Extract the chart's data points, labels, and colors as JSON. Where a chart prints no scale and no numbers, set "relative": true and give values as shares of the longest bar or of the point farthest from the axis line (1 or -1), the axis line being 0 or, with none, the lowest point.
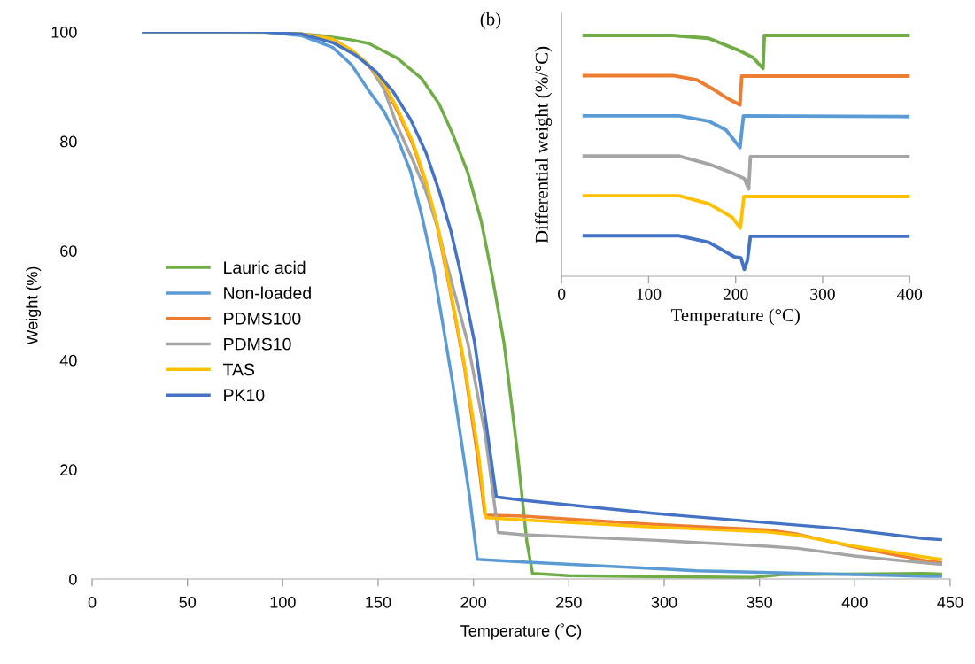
{
  "chart_data": [
    {
      "type": "line",
      "xlabel": "Temperature (˚C)",
      "ylabel": "Weight (%)",
      "xlim": [
        0,
        450
      ],
      "xticks": [
        0,
        50,
        100,
        150,
        200,
        250,
        300,
        350,
        400,
        450
      ],
      "ylim": [
        0,
        100
      ],
      "yticks": [
        0,
        20,
        40,
        60,
        80,
        100
      ],
      "grid": false,
      "legend": "left",
      "series": [
        {
          "name": "Lauric acid",
          "color": "#70ad47",
          "x": [
            27,
            100,
            120,
            135,
            145,
            160,
            173,
            182,
            189,
            197,
            204,
            210,
            216,
            223,
            228,
            231,
            250,
            300,
            347,
            362,
            436,
            445
          ],
          "values": [
            100,
            99.9,
            99.3,
            98.6,
            97.9,
            95.2,
            91.4,
            86.8,
            81.4,
            74.3,
            65.5,
            55,
            43.2,
            23.3,
            6.8,
            1,
            0.6,
            0.4,
            0.3,
            0.8,
            1.0,
            0.9
          ]
        },
        {
          "name": "Non-loaded",
          "color": "#5b9bd5",
          "x": [
            27,
            90,
            110,
            126,
            136,
            145,
            153,
            160,
            167,
            173,
            179,
            184,
            189,
            193,
            198,
            202,
            226,
            317,
            438,
            445
          ],
          "values": [
            100,
            100,
            99.3,
            97.2,
            94,
            89.3,
            85.5,
            80.7,
            74.5,
            66.3,
            56.8,
            46.4,
            36,
            26.7,
            15,
            3.6,
            3.1,
            1.5,
            0.5,
            0.5
          ]
        },
        {
          "name": "PDMS100",
          "color": "#ed7d31",
          "x": [
            110,
            126,
            136,
            145,
            153,
            160,
            168,
            175,
            181,
            186,
            195,
            202,
            206,
            226,
            294,
            354,
            370,
            400,
            438,
            445
          ],
          "values": [
            99.6,
            98.7,
            96.6,
            93.8,
            90.3,
            85.6,
            79.6,
            72.4,
            64.4,
            55.8,
            39.3,
            22.8,
            11.7,
            11.5,
            10.0,
            9.0,
            8.2,
            5.8,
            3.3,
            3.0
          ]
        },
        {
          "name": "PDMS10",
          "color": "#a5a5a5",
          "x": [
            27,
            95,
            110,
            126,
            136,
            145,
            153,
            160,
            168,
            175,
            181,
            186,
            197,
            206,
            213,
            226,
            294,
            354,
            370,
            400,
            438,
            445
          ],
          "values": [
            100,
            100,
            99.6,
            98.7,
            96.7,
            94,
            89.6,
            82.8,
            76.7,
            70.9,
            64.5,
            57.6,
            43.2,
            26.7,
            8.5,
            8.1,
            7.1,
            6.0,
            5.6,
            4.2,
            2.9,
            2.7
          ]
        },
        {
          "name": "TAS",
          "color": "#ffc000",
          "x": [
            27,
            95,
            110,
            126,
            136,
            145,
            153,
            160,
            168,
            175,
            181,
            186,
            195,
            202.5,
            206.5,
            226,
            294,
            354,
            370,
            400,
            437,
            445
          ],
          "values": [
            100,
            100,
            99.6,
            98.7,
            96.7,
            94,
            90.6,
            86,
            80,
            72.8,
            64.9,
            56.3,
            39.8,
            23.3,
            11.2,
            10.8,
            9.5,
            8.6,
            8.0,
            6.0,
            4.0,
            3.6
          ]
        },
        {
          "name": "PK10",
          "color": "#4472c4",
          "x": [
            27,
            89,
            110,
            126.5,
            138,
            149,
            158,
            167,
            175,
            182,
            188,
            193,
            200.6,
            206,
            212,
            226,
            294,
            347,
            393,
            436,
            445
          ],
          "values": [
            100,
            100,
            99.6,
            98,
            95.8,
            92.7,
            89,
            84,
            78,
            70.9,
            63.8,
            56.3,
            43.2,
            30,
            15.0,
            14.4,
            12,
            10.5,
            9.2,
            7.4,
            7.2
          ]
        }
      ]
    },
    {
      "type": "line",
      "relative": true,
      "xlabel": "Temperature (°C)",
      "ylabel": "Differential weight (%/°C)",
      "xlim": [
        0,
        400
      ],
      "xticks": [
        0,
        100,
        200,
        300,
        400
      ],
      "grid": false,
      "legend": false,
      "annotations": [
        "(b)"
      ],
      "series": [
        {
          "color": "#70ad47",
          "x": [
            26,
            128,
            169,
            203,
            220,
            231.5,
            233,
            400
          ],
          "values": [
            1.0,
            1.0,
            0.988,
            0.939,
            0.908,
            0.863,
            1.0,
            1.0
          ]
        },
        {
          "color": "#ed7d31",
          "x": [
            26,
            128,
            155,
            176,
            189,
            203,
            205,
            207,
            400
          ],
          "values": [
            0.833,
            0.833,
            0.816,
            0.773,
            0.742,
            0.715,
            0.711,
            0.831,
            0.831
          ]
        },
        {
          "color": "#5b9bd5",
          "x": [
            26,
            135,
            169,
            189,
            205,
            209,
            400
          ],
          "values": [
            0.666,
            0.666,
            0.644,
            0.607,
            0.534,
            0.666,
            0.663
          ]
        },
        {
          "color": "#a5a5a5",
          "x": [
            26,
            135,
            169,
            196,
            210,
            215,
            217,
            400
          ],
          "values": [
            0.499,
            0.499,
            0.466,
            0.429,
            0.405,
            0.362,
            0.497,
            0.497
          ]
        },
        {
          "color": "#ffc000",
          "x": [
            26,
            135,
            169,
            196,
            205.4,
            209.5,
            400
          ],
          "values": [
            0.334,
            0.334,
            0.301,
            0.245,
            0.2,
            0.331,
            0.331
          ]
        },
        {
          "color": "#4472c4",
          "x": [
            26,
            135,
            169,
            199,
            206,
            210,
            213.6,
            217,
            400
          ],
          "values": [
            0.168,
            0.168,
            0.141,
            0.08,
            0.077,
            0.028,
            0.067,
            0.166,
            0.166
          ]
        }
      ]
    }
  ]
}
